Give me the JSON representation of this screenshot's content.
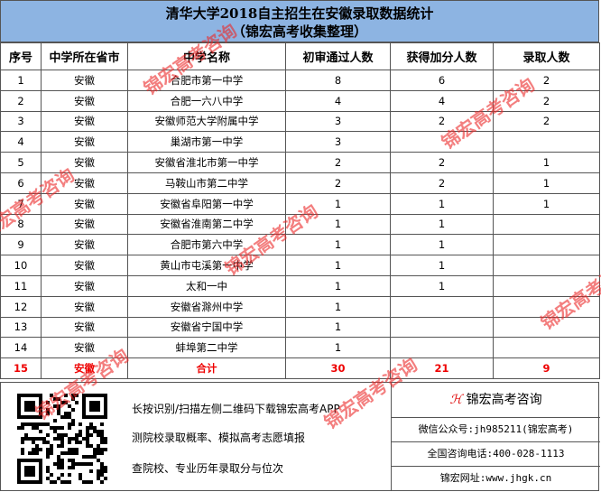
{
  "title": {
    "line1": "清华大学2018自主招生在安徽录取数据统计",
    "line2": "（锦宏高考收集整理）"
  },
  "columns": [
    "序号",
    "中学所在省市",
    "中学名称",
    "初审通过人数",
    "获得加分人数",
    "录取人数"
  ],
  "rows": [
    [
      "1",
      "安徽",
      "合肥市第一中学",
      "8",
      "6",
      "2"
    ],
    [
      "2",
      "安徽",
      "合肥一六八中学",
      "4",
      "4",
      "2"
    ],
    [
      "3",
      "安徽",
      "安徽师范大学附属中学",
      "3",
      "2",
      "2"
    ],
    [
      "4",
      "安徽",
      "巢湖市第一中学",
      "3",
      "",
      ""
    ],
    [
      "5",
      "安徽",
      "安徽省淮北市第一中学",
      "2",
      "2",
      "1"
    ],
    [
      "6",
      "安徽",
      "马鞍山市第二中学",
      "2",
      "2",
      "1"
    ],
    [
      "7",
      "安徽",
      "安徽省阜阳第一中学",
      "1",
      "1",
      "1"
    ],
    [
      "8",
      "安徽",
      "安徽省淮南第二中学",
      "1",
      "1",
      ""
    ],
    [
      "9",
      "安徽",
      "合肥市第六中学",
      "1",
      "1",
      ""
    ],
    [
      "10",
      "安徽",
      "黄山市屯溪第一中学",
      "1",
      "1",
      ""
    ],
    [
      "11",
      "安徽",
      "太和一中",
      "1",
      "1",
      ""
    ],
    [
      "12",
      "安徽",
      "安徽省滁州中学",
      "1",
      "",
      ""
    ],
    [
      "13",
      "安徽",
      "安徽省宁国中学",
      "1",
      "",
      ""
    ],
    [
      "14",
      "安徽",
      "蚌埠第二中学",
      "1",
      "",
      ""
    ]
  ],
  "total": [
    "15",
    "安徽",
    "合计",
    "30",
    "21",
    "9"
  ],
  "footer": {
    "lines": [
      "长按识别/扫描左侧二维码下载锦宏高考APP",
      "测院校录取概率、模拟高考志愿填报",
      "查院校、专业历年录取分与位次"
    ],
    "brand": "锦宏高考咨询",
    "wechat": "微信公众号:jh985211(锦宏高考)",
    "phone": "全国咨询电话:400-028-1113",
    "website": "锦宏网址:www.jhgk.cn"
  },
  "watermark": "锦宏高考咨询"
}
